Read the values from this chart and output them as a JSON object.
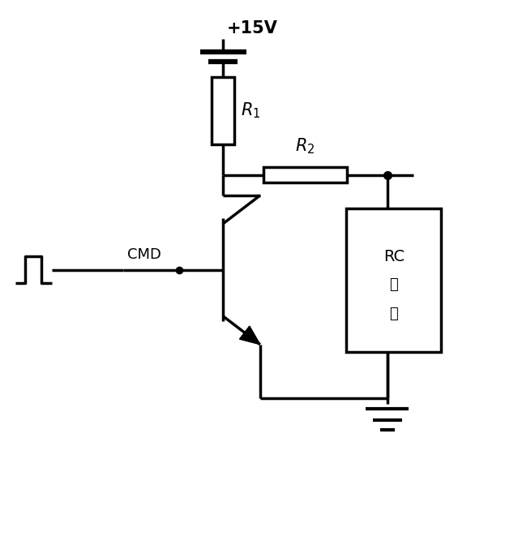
{
  "bg_color": "#ffffff",
  "line_color": "#000000",
  "line_width": 2.5,
  "figsize": [
    6.39,
    6.72
  ],
  "dpi": 100,
  "power_label": "+15V",
  "R1_label": "$R_1$",
  "R2_label": "$R_2$",
  "CMD_label": "CMD",
  "RC_line1": "RC",
  "RC_line2": "网",
  "RC_line3": "络"
}
